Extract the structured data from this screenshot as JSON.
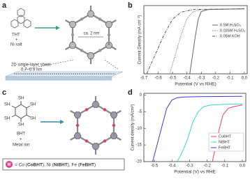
{
  "panels": {
    "a": {
      "label": "a",
      "precursor": "THT",
      "plus": "+",
      "metal": "Ni salt",
      "pore_size": "ca. 2 nm",
      "sheet": "2D single-layer sheet",
      "thickness": "0.7~0.9 nm"
    },
    "b": {
      "label": "b"
    },
    "c": {
      "label": "c",
      "precursor": "BHT",
      "thiol": "SH",
      "plus": "+",
      "metal": "Metal ion",
      "metal_symbol": "M",
      "metal_legend": [
        "= Co (",
        "CoBHT",
        "), Ni (",
        "NiBHT",
        "), Fe (",
        "FeBHT",
        ")"
      ]
    },
    "d": {
      "label": "d"
    }
  },
  "chart_data": [
    {
      "type": "line",
      "x_label": "Potential (V vs RHE)",
      "y_label": "Current Density (mA cm⁻²)",
      "xlim": [
        -0.7,
        0.02
      ],
      "xticks": [
        -0.7,
        -0.6,
        -0.5,
        -0.4,
        -0.3,
        -0.2,
        -0.1,
        {
          "value": 0,
          "label": "0.0"
        }
      ],
      "ylim": [
        -10,
        0.5
      ],
      "legend": "upper right",
      "series": [
        {
          "name": "0.5M H₂SO₄",
          "color": "#666666",
          "style": "solid",
          "x": [
            -0.38,
            -0.36,
            -0.34,
            -0.32,
            -0.3,
            -0.25,
            0.0
          ],
          "values": [
            -10,
            -7,
            -4,
            -1.5,
            -0.4,
            -0.1,
            0
          ]
        },
        {
          "name": "0.025M H₂SO₄",
          "color": "#777777",
          "style": "dotted",
          "x": [
            -0.52,
            -0.48,
            -0.44,
            -0.4,
            -0.36,
            -0.3,
            0.0
          ],
          "values": [
            -10,
            -7,
            -4,
            -1.5,
            -0.5,
            -0.1,
            0
          ]
        },
        {
          "name": "0.05M KOH",
          "color": "#555555",
          "style": "dashdot",
          "x": [
            -0.68,
            -0.62,
            -0.56,
            -0.5,
            -0.44,
            -0.35,
            0.0
          ],
          "values": [
            -10,
            -7,
            -4,
            -1.6,
            -0.5,
            -0.1,
            0
          ]
        }
      ]
    },
    {
      "type": "line",
      "x_label": "Potential (V) vs RHE",
      "y_label": "Current density (mA/cm²)",
      "xlim": [
        -0.56,
        0.02
      ],
      "xticks": [
        -0.5,
        -0.4,
        -0.3,
        -0.2,
        -0.1,
        {
          "value": 0,
          "label": "0.0"
        }
      ],
      "ylim": [
        -20,
        0.5
      ],
      "yticks": [
        0,
        -5,
        -10,
        -15,
        -20
      ],
      "legend": "lower right",
      "series": [
        {
          "name": "CoBHT",
          "color": "#e8407a",
          "style": "solid",
          "x": [
            -0.17,
            -0.15,
            -0.13,
            -0.11,
            -0.08,
            -0.05,
            0.0
          ],
          "values": [
            -20,
            -15,
            -10,
            -6,
            -4,
            -3.5,
            -3
          ]
        },
        {
          "name": "NiBHT",
          "color": "#3dd8c8",
          "style": "solid",
          "x": [
            -0.37,
            -0.34,
            -0.31,
            -0.28,
            -0.25,
            -0.22,
            -0.18,
            -0.1,
            0.0
          ],
          "values": [
            -20,
            -17,
            -13,
            -8,
            -5,
            -3.5,
            -3,
            -2.8,
            -2.7
          ]
        },
        {
          "name": "FeBHT",
          "color": "#3a3ad8",
          "style": "solid",
          "x": [
            -0.51,
            -0.49,
            -0.47,
            -0.45,
            -0.43,
            -0.4,
            -0.37,
            -0.33,
            -0.25,
            0.0
          ],
          "values": [
            -20,
            -16,
            -12,
            -8,
            -4,
            -1.5,
            -0.8,
            -0.6,
            -0.5,
            -0.4
          ]
        }
      ]
    }
  ]
}
